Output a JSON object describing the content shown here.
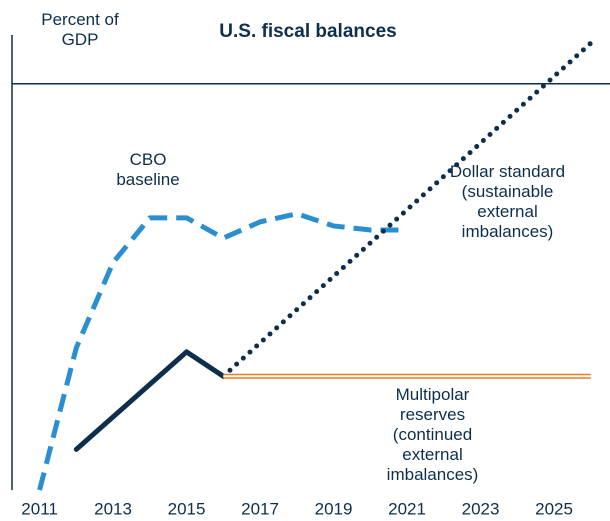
{
  "chart_data": {
    "type": "line",
    "title": "U.S. fiscal balances",
    "y_label": "Percent of GDP",
    "xlim": [
      2010.25,
      2026.25
    ],
    "ylim": [
      -10,
      1.2
    ],
    "xticks": [
      2011,
      2013,
      2015,
      2017,
      2019,
      2021,
      2023,
      2025
    ],
    "series": [
      {
        "name": "CBO baseline",
        "color": "#2a8fd1",
        "style": "dashed",
        "x": [
          2011,
          2012,
          2013,
          2014,
          2015,
          2016,
          2017,
          2018,
          2019,
          2020,
          2021
        ],
        "values": [
          -10.0,
          -6.5,
          -4.4,
          -3.3,
          -3.3,
          -3.8,
          -3.4,
          -3.2,
          -3.5,
          -3.6,
          -3.6
        ]
      },
      {
        "color": "#0e2f4c",
        "style": "solid",
        "x": [
          2012,
          2013,
          2014,
          2015,
          2016
        ],
        "values": [
          -9.0,
          -8.2,
          -7.4,
          -6.6,
          -7.2
        ]
      },
      {
        "name": "Dollar standard (sustainable external imbalances)",
        "color": "#0e2f4c",
        "style": "dotted",
        "x": [
          2016,
          2026
        ],
        "values": [
          -7.2,
          1.0
        ]
      },
      {
        "name": "Multipolar reserves (continued external imbalances)",
        "color": "#f07a22",
        "style": "outline",
        "x": [
          2016,
          2026
        ],
        "values": [
          -7.2,
          -7.2
        ]
      }
    ]
  }
}
